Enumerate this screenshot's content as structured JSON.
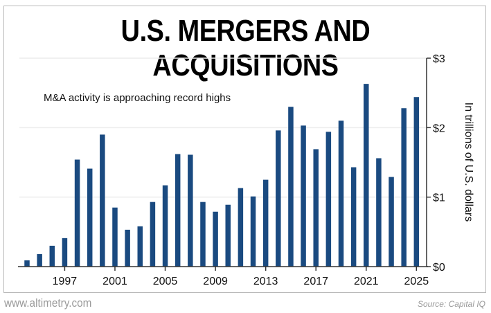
{
  "title": "U.S. MERGERS AND ACQUISITIONS",
  "footer": {
    "website": "www.altimetry.com",
    "source": "Source: Capital IQ"
  },
  "colors": {
    "bar": "#1a4a80",
    "axis": "#333333",
    "grid": "#ececec",
    "frame": "#b8b8b8",
    "footer_text": "#9a9a9a"
  },
  "chart_data": {
    "type": "bar",
    "title": "U.S. MERGERS AND ACQUISITIONS",
    "annotation": "M&A activity is approaching record highs",
    "xlabel": "",
    "ylabel": "In trillions of U.S. dollars",
    "ylim": [
      0,
      3
    ],
    "grid": true,
    "y_axis_side": "right",
    "y_ticks": [
      0,
      1,
      2,
      3
    ],
    "y_tick_labels": [
      "$0",
      "$1",
      "$2",
      "$3"
    ],
    "x_tick_labels": [
      "1997",
      "2001",
      "2005",
      "2009",
      "2013",
      "2017",
      "2021",
      "2025"
    ],
    "categories": [
      1994,
      1995,
      1996,
      1997,
      1998,
      1999,
      2000,
      2001,
      2002,
      2003,
      2004,
      2005,
      2006,
      2007,
      2008,
      2009,
      2010,
      2011,
      2012,
      2013,
      2014,
      2015,
      2016,
      2017,
      2018,
      2019,
      2020,
      2021,
      2022,
      2023,
      2024,
      2025
    ],
    "values": [
      0.09,
      0.18,
      0.3,
      0.41,
      1.54,
      1.41,
      1.9,
      0.85,
      0.53,
      0.58,
      0.93,
      1.17,
      1.62,
      1.61,
      0.93,
      0.79,
      0.89,
      1.13,
      1.01,
      1.25,
      1.96,
      2.3,
      2.03,
      1.69,
      1.94,
      2.1,
      1.43,
      2.63,
      1.56,
      1.29,
      2.28,
      2.44
    ]
  }
}
